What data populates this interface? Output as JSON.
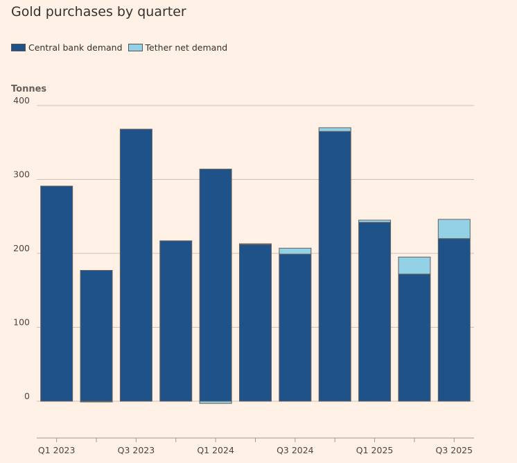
{
  "chart_data": {
    "type": "bar",
    "stacked": true,
    "title": "Gold purchases by quarter",
    "ylabel": "Tonnes",
    "xlabel": "",
    "ylim": [
      -50,
      400
    ],
    "yticks": [
      0,
      100,
      200,
      300,
      400
    ],
    "grid": true,
    "legend_placement": "top-left",
    "categories": [
      "Q1 2023",
      "Q2 2023",
      "Q3 2023",
      "Q4 2023",
      "Q1 2024",
      "Q2 2024",
      "Q3 2024",
      "Q4 2024",
      "Q1 2025",
      "Q2 2025",
      "Q3 2025"
    ],
    "xtick_labels": [
      "Q1 2023",
      "Q3 2023",
      "Q1 2024",
      "Q3 2024",
      "Q1 2025",
      "Q3 2025"
    ],
    "series": [
      {
        "name": "Central bank demand",
        "color": "#1f5289",
        "values": [
          291,
          177,
          368,
          217,
          314,
          212,
          199,
          365,
          242,
          172,
          220
        ]
      },
      {
        "name": "Tether net demand",
        "color": "#92d1e6",
        "values": [
          0,
          -1,
          0,
          0,
          -3,
          1,
          8,
          5,
          3,
          23,
          26
        ]
      }
    ]
  }
}
